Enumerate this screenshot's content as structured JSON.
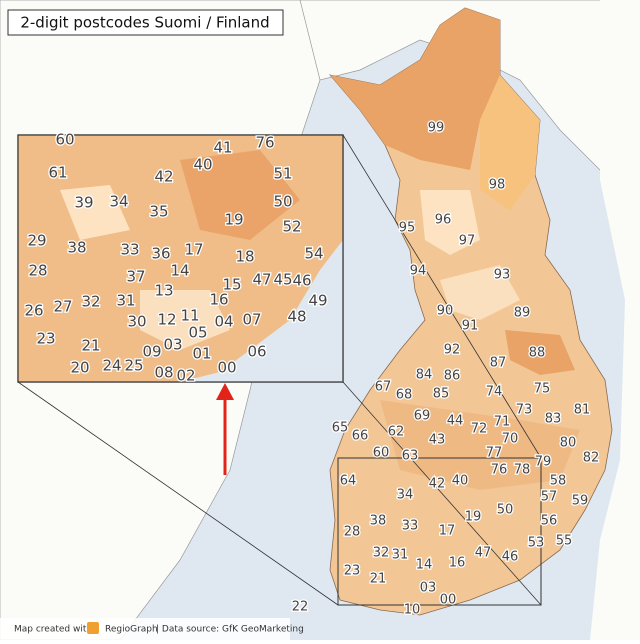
{
  "title": "2-digit postcodes Suomi / Finland",
  "main_labels": [
    "99",
    "98",
    "96",
    "95",
    "97",
    "93",
    "94",
    "90",
    "91",
    "89",
    "92",
    "88",
    "87",
    "84",
    "86",
    "67",
    "68",
    "85",
    "74",
    "75",
    "81",
    "73",
    "83",
    "69",
    "44",
    "72",
    "71",
    "62",
    "65",
    "66",
    "43",
    "70",
    "80",
    "82",
    "77",
    "60",
    "63",
    "76",
    "78",
    "79",
    "58",
    "64",
    "42",
    "40",
    "57",
    "59",
    "34",
    "50",
    "19",
    "38",
    "33",
    "17",
    "28",
    "56",
    "55",
    "53",
    "32",
    "31",
    "47",
    "14",
    "16",
    "46",
    "23",
    "21",
    "03",
    "00",
    "10",
    "22"
  ],
  "inset_labels": [
    "60",
    "41",
    "76",
    "61",
    "40",
    "42",
    "51",
    "39",
    "34",
    "35",
    "50",
    "19",
    "52",
    "29",
    "38",
    "33",
    "36",
    "17",
    "18",
    "54",
    "28",
    "14",
    "37",
    "47",
    "45",
    "46",
    "15",
    "13",
    "16",
    "49",
    "26",
    "27",
    "32",
    "31",
    "11",
    "48",
    "30",
    "12",
    "04",
    "07",
    "05",
    "23",
    "21",
    "03",
    "09",
    "01",
    "06",
    "24",
    "25",
    "20",
    "08",
    "02",
    "00"
  ],
  "footer": {
    "created": "Map created with",
    "brand": "RegioGraph",
    "source": "| Data source: GfK GeoMarketing"
  }
}
